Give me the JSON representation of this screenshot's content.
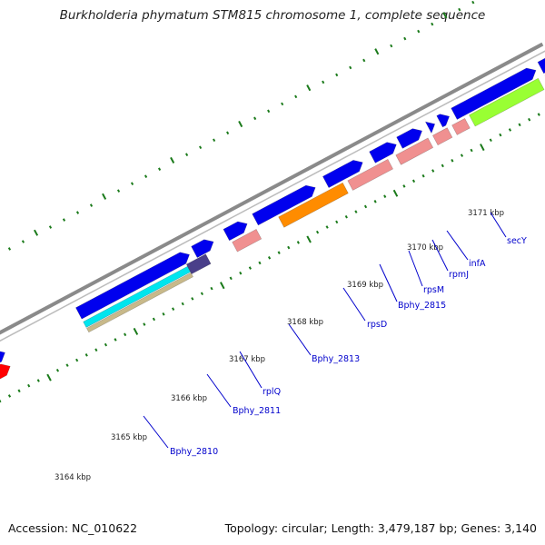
{
  "title": "Burkholderia phymatum STM815 chromosome 1, complete sequence",
  "footer": {
    "accession": "Accession: NC_010622",
    "summary": "Topology: circular; Length: 3,479,187 bp; Genes: 3,140"
  },
  "ticks": [
    {
      "label": "3164 kbp"
    },
    {
      "label": "3165 kbp"
    },
    {
      "label": "3166 kbp"
    },
    {
      "label": "3167 kbp"
    },
    {
      "label": "3168 kbp"
    },
    {
      "label": "3169 kbp"
    },
    {
      "label": "3170 kbp"
    },
    {
      "label": "3171 kbp"
    }
  ],
  "gene_labels": [
    {
      "name": "Bphy_2810"
    },
    {
      "name": "Bphy_2811"
    },
    {
      "name": "rplQ"
    },
    {
      "name": "Bphy_2813"
    },
    {
      "name": "rpsD"
    },
    {
      "name": "Bphy_2815"
    },
    {
      "name": "rpsM"
    },
    {
      "name": "rpmJ"
    },
    {
      "name": "infA"
    },
    {
      "name": "secY"
    }
  ],
  "colors": {
    "backbone": "#8a8a8a",
    "cds_forward": "#0000ee",
    "cds_highlight": "#ff0000",
    "cog_pink": "#f09090",
    "cog_cyan": "#00e5ee",
    "cog_tan": "#c8b98a",
    "cog_purple": "#4a3f8a",
    "cog_orange": "#ff8c00",
    "cog_lime": "#99ff33",
    "tick_green": "#1a7a1a",
    "gene_label": "#0000cc"
  }
}
